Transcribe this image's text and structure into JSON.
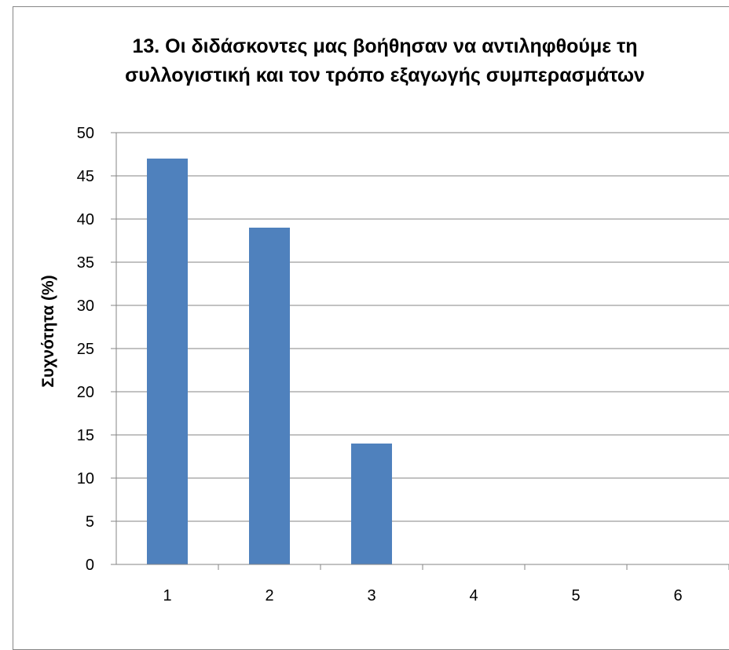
{
  "chart_data": {
    "type": "bar",
    "title": [
      "13. Οι διδάσκοντες μας βοήθησαν να αντιληφθούμε τη",
      "συλλογιστική και τον τρόπο εξαγωγής συμπερασμάτων"
    ],
    "xlabel": "",
    "ylabel": "Συχνότητα (%)",
    "categories": [
      "1",
      "2",
      "3",
      "4",
      "5",
      "6"
    ],
    "values": [
      47,
      39,
      14,
      0,
      0,
      0
    ],
    "ylim": [
      0,
      50
    ],
    "ytick_step": 5,
    "grid": true,
    "bar_color": "#4F81BD",
    "grid_color": "#868686"
  }
}
